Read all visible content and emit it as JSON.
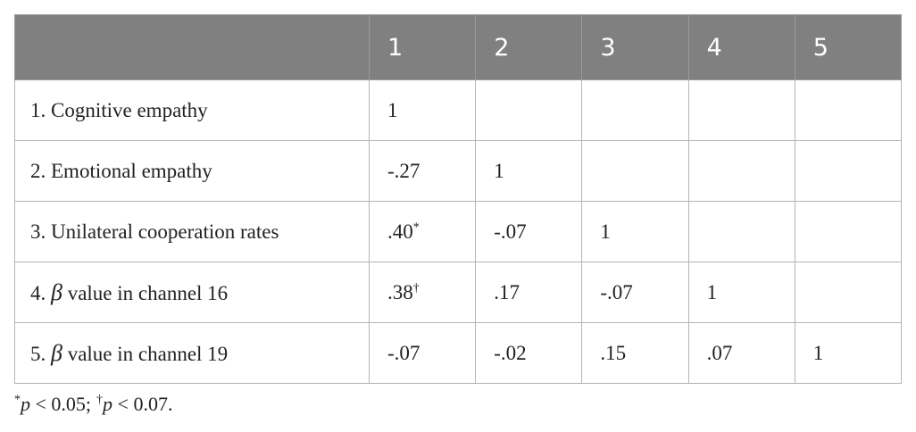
{
  "table": {
    "columns": [
      "1",
      "2",
      "3",
      "4",
      "5"
    ],
    "rows": [
      {
        "number": "1.",
        "text": "Cognitive empathy",
        "cells": [
          {
            "text": "1"
          }
        ]
      },
      {
        "number": "2.",
        "text": "Emotional empathy",
        "cells": [
          {
            "text": "-.27"
          },
          {
            "text": "1"
          }
        ]
      },
      {
        "number": "3.",
        "text": "Unilateral cooperation rates",
        "cells": [
          {
            "text": ".40",
            "note": "*"
          },
          {
            "text": "-.07"
          },
          {
            "text": "1"
          }
        ]
      },
      {
        "number": "4.",
        "symbol": "β",
        "text": "value in channel 16",
        "cells": [
          {
            "text": ".38",
            "note": "†"
          },
          {
            "text": ".17"
          },
          {
            "text": "-.07"
          },
          {
            "text": "1"
          }
        ]
      },
      {
        "number": "5.",
        "symbol": "β",
        "text": "value in channel 19",
        "cells": [
          {
            "text": "-.07"
          },
          {
            "text": "-.02"
          },
          {
            "text": ".15"
          },
          {
            "text": ".07"
          },
          {
            "text": "1"
          }
        ]
      }
    ],
    "footnotes": [
      {
        "symbol": "*",
        "variable": "p",
        "condition": "< 0.05;"
      },
      {
        "symbol": "†",
        "variable": "p",
        "condition": "< 0.07."
      }
    ]
  }
}
